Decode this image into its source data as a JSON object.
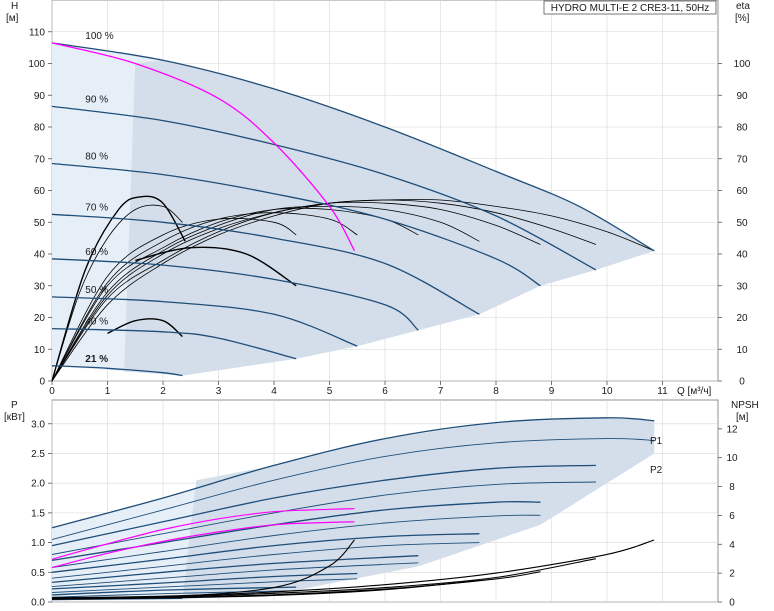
{
  "title": "HYDRO MULTI-E 2 CRE3-11, 50Hz",
  "colors": {
    "region_light": "#e6eef7",
    "region_dark": "#cfdbe7",
    "curve_dark": "#1f4e79",
    "eta_line": "#000000",
    "highlight": "#ff00ff",
    "grid": "#d7d7d7"
  },
  "chart_data": [
    {
      "type": "line",
      "xlabel": "Q [м³/ч]",
      "ylabel": "H\n[м]",
      "y2label": "eta\n[%]",
      "xlim": [
        0,
        12
      ],
      "ylim": [
        0,
        120
      ],
      "y2lim": [
        0,
        120
      ],
      "x_ticks": [
        0,
        1,
        2,
        3,
        4,
        5,
        6,
        7,
        8,
        9,
        10,
        11
      ],
      "y_ticks": [
        0,
        10,
        20,
        30,
        40,
        50,
        60,
        70,
        80,
        90,
        100,
        110
      ],
      "y2_ticks": [
        0,
        10,
        20,
        30,
        40,
        50,
        60,
        70,
        80,
        90,
        100
      ],
      "grid": true,
      "speed_labels": [
        "100 %",
        "90 %",
        "80 %",
        "70 %",
        "60 %",
        "50 %",
        "40 %",
        "21 %"
      ],
      "head_curves": [
        {
          "speed": "100 %",
          "x": [
            0,
            2,
            4,
            6,
            8,
            9.5,
            10.85
          ],
          "y": [
            106.5,
            101,
            92,
            80,
            66,
            55,
            41
          ]
        },
        {
          "speed": "90 %",
          "x": [
            0,
            2,
            4,
            6,
            8,
            9.8
          ],
          "y": [
            86.5,
            82,
            74.5,
            65,
            52,
            35
          ]
        },
        {
          "speed": "80 %",
          "x": [
            0,
            2,
            4,
            6,
            8,
            8.8
          ],
          "y": [
            68.5,
            65,
            59,
            51,
            38.5,
            30
          ]
        },
        {
          "speed": "70 %",
          "x": [
            0,
            2,
            4,
            6,
            7.7
          ],
          "y": [
            52.5,
            50,
            45,
            37,
            21
          ]
        },
        {
          "speed": "60 %",
          "x": [
            0,
            2,
            4,
            6,
            6.6
          ],
          "y": [
            38.5,
            36.5,
            32,
            24,
            16
          ]
        },
        {
          "speed": "50 %",
          "x": [
            0,
            2,
            4,
            5.5
          ],
          "y": [
            26.5,
            25,
            21,
            11
          ]
        },
        {
          "speed": "40 %",
          "x": [
            0,
            2,
            3,
            4.4
          ],
          "y": [
            16.5,
            15.5,
            13.5,
            7
          ]
        },
        {
          "speed": "21 %",
          "x": [
            0,
            1,
            2,
            2.35
          ],
          "y": [
            4.8,
            4,
            2.6,
            1.7
          ]
        }
      ],
      "highlight_curve": {
        "x": [
          0,
          1.5,
          3,
          4,
          5,
          5.45
        ],
        "y": [
          106.5,
          100,
          89,
          75,
          55,
          41
        ]
      },
      "eta_curves": [
        {
          "x": [
            0,
            1,
            2,
            3,
            4,
            5,
            6,
            7,
            8,
            9,
            10,
            10.85
          ],
          "y": [
            0,
            24,
            37,
            46,
            52,
            56,
            57,
            57,
            55,
            52,
            47,
            41
          ]
        },
        {
          "x": [
            0,
            1,
            2,
            3,
            4,
            5,
            6,
            7,
            8,
            9,
            9.8
          ],
          "y": [
            0,
            26,
            38,
            47,
            53,
            56,
            57,
            56,
            53,
            48,
            43
          ]
        },
        {
          "x": [
            0,
            1,
            2,
            3,
            4,
            5,
            6,
            7,
            8,
            8.8
          ],
          "y": [
            0,
            27,
            40,
            48,
            53,
            56,
            56,
            54,
            49,
            43
          ]
        },
        {
          "x": [
            0,
            1,
            2,
            3,
            4,
            5,
            6,
            7,
            7.7
          ],
          "y": [
            0,
            28,
            41,
            49,
            54,
            55,
            54,
            50,
            44
          ]
        },
        {
          "x": [
            0,
            1,
            2,
            3,
            4,
            5,
            6,
            6.6
          ],
          "y": [
            0,
            30,
            42,
            50,
            54,
            54,
            51,
            46
          ]
        },
        {
          "x": [
            0,
            1,
            2,
            3,
            4,
            5,
            5.5
          ],
          "y": [
            0,
            31,
            44,
            51,
            53,
            51,
            46
          ]
        },
        {
          "x": [
            0,
            1,
            2,
            3,
            4,
            4.4
          ],
          "y": [
            0,
            33,
            46,
            51,
            50,
            46
          ]
        },
        {
          "x": [
            0,
            0.5,
            1,
            1.5,
            2,
            2.35
          ],
          "y": [
            0,
            28,
            45,
            54,
            55,
            50
          ]
        }
      ],
      "eta_highlights": [
        {
          "x": [
            0,
            0.6,
            1.2,
            1.6,
            2,
            2.4
          ],
          "y": [
            0,
            35,
            54,
            58,
            56,
            44
          ]
        },
        {
          "x": [
            1.5,
            2.5,
            3.5,
            4.4
          ],
          "y": [
            38,
            42,
            40,
            30
          ]
        },
        {
          "x": [
            1,
            1.5,
            2,
            2.35
          ],
          "y": [
            15,
            19,
            19,
            14
          ]
        }
      ]
    },
    {
      "type": "line",
      "xlabel": "",
      "ylabel": "P\n[кВт]",
      "y2label": "NPSH\n[м]",
      "xlim": [
        0,
        12
      ],
      "ylim": [
        0,
        3.4
      ],
      "y2lim": [
        0,
        14
      ],
      "y_ticks": [
        "0.0",
        "0.5",
        "1.0",
        "1.5",
        "2.0",
        "2.5",
        "3.0"
      ],
      "y2_ticks": [
        0,
        2,
        4,
        6,
        8,
        10,
        12
      ],
      "grid": true,
      "series_labels": [
        "P1",
        "P2"
      ],
      "p1_curves": [
        {
          "x": [
            0,
            2,
            4,
            6,
            8,
            10,
            10.85
          ],
          "y": [
            1.25,
            1.75,
            2.3,
            2.75,
            3.02,
            3.1,
            3.05
          ]
        },
        {
          "x": [
            0,
            2,
            4,
            6,
            8,
            9.8
          ],
          "y": [
            0.95,
            1.35,
            1.75,
            2.05,
            2.25,
            2.3
          ]
        },
        {
          "x": [
            0,
            2,
            4,
            6,
            8,
            8.8
          ],
          "y": [
            0.7,
            1.0,
            1.3,
            1.55,
            1.68,
            1.68
          ]
        },
        {
          "x": [
            0,
            2,
            4,
            6,
            7.7
          ],
          "y": [
            0.5,
            0.72,
            0.95,
            1.1,
            1.15
          ]
        },
        {
          "x": [
            0,
            2,
            4,
            6.6
          ],
          "y": [
            0.33,
            0.5,
            0.65,
            0.78
          ]
        },
        {
          "x": [
            0,
            2,
            4,
            5.5
          ],
          "y": [
            0.22,
            0.32,
            0.43,
            0.48
          ]
        },
        {
          "x": [
            0,
            2,
            4.4
          ],
          "y": [
            0.12,
            0.2,
            0.25
          ]
        },
        {
          "x": [
            0,
            1,
            2.35
          ],
          "y": [
            0.04,
            0.05,
            0.06
          ]
        }
      ],
      "p2_curves": [
        {
          "x": [
            0,
            2,
            4,
            6,
            8,
            10,
            10.85
          ],
          "y": [
            1.05,
            1.55,
            2.05,
            2.45,
            2.68,
            2.75,
            2.72
          ]
        },
        {
          "x": [
            0,
            2,
            4,
            6,
            8,
            9.8
          ],
          "y": [
            0.8,
            1.15,
            1.5,
            1.8,
            1.98,
            2.02
          ]
        },
        {
          "x": [
            0,
            2,
            4,
            6,
            8,
            8.8
          ],
          "y": [
            0.58,
            0.85,
            1.12,
            1.33,
            1.45,
            1.46
          ]
        },
        {
          "x": [
            0,
            2,
            4,
            6,
            7.7
          ],
          "y": [
            0.4,
            0.6,
            0.8,
            0.95,
            1.0
          ]
        },
        {
          "x": [
            0,
            2,
            4,
            6.6
          ],
          "y": [
            0.26,
            0.4,
            0.54,
            0.66
          ]
        },
        {
          "x": [
            0,
            2,
            4,
            5.5
          ],
          "y": [
            0.16,
            0.25,
            0.34,
            0.39
          ]
        },
        {
          "x": [
            0,
            2,
            4.4
          ],
          "y": [
            0.08,
            0.14,
            0.19
          ]
        }
      ],
      "highlight_curves": [
        {
          "x": [
            0,
            1,
            2,
            3,
            4,
            5,
            5.45
          ],
          "y": [
            0.72,
            0.98,
            1.22,
            1.4,
            1.52,
            1.56,
            1.57
          ]
        },
        {
          "x": [
            0,
            1,
            2,
            3,
            4,
            5,
            5.45
          ],
          "y": [
            0.58,
            0.82,
            1.02,
            1.18,
            1.3,
            1.34,
            1.35
          ]
        }
      ],
      "npsh_curves": [
        {
          "x": [
            0,
            2,
            4,
            6,
            8,
            10,
            10.85
          ],
          "y": [
            0.3,
            0.4,
            0.7,
            1.2,
            2.0,
            3.3,
            4.3
          ]
        },
        {
          "x": [
            0,
            2,
            4,
            6,
            8,
            9.8
          ],
          "y": [
            0.25,
            0.35,
            0.6,
            1.0,
            1.7,
            3.0
          ]
        },
        {
          "x": [
            0,
            2,
            4,
            6,
            8,
            8.8
          ],
          "y": [
            0.2,
            0.3,
            0.5,
            0.9,
            1.6,
            2.1
          ]
        },
        {
          "x": [
            0,
            2,
            4,
            6,
            7.7
          ],
          "y": [
            0.2,
            0.28,
            0.45,
            0.85,
            1.5
          ]
        },
        {
          "x": [
            0,
            2,
            4,
            5,
            5.45
          ],
          "y": [
            0.2,
            0.35,
            1.0,
            2.5,
            4.3
          ]
        }
      ]
    }
  ]
}
